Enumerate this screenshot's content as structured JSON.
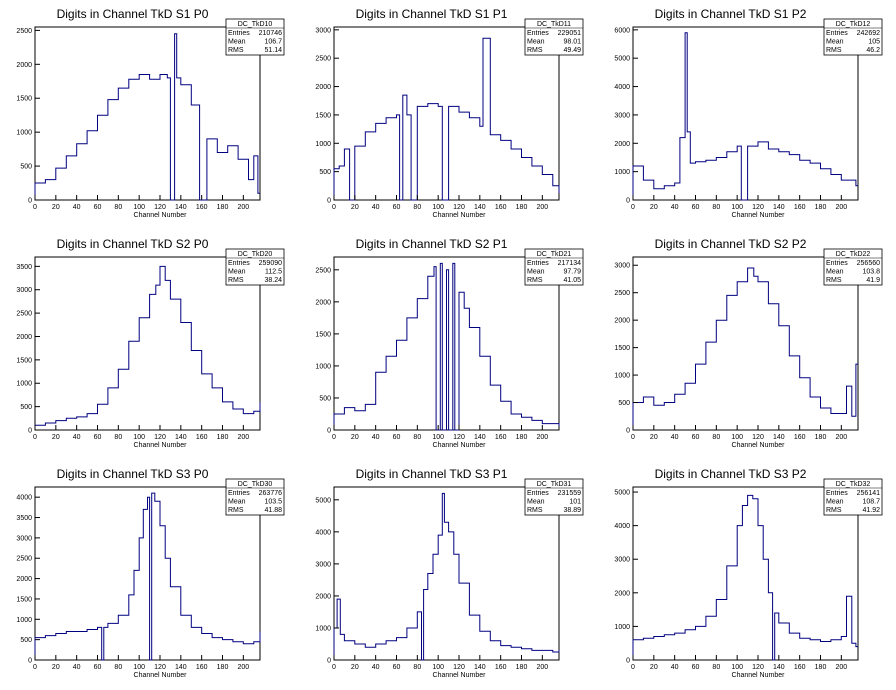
{
  "colors": {
    "histogram": "#000080",
    "axis": "#000000",
    "frame": "#000000"
  },
  "chart_data": [
    {
      "type": "histogram",
      "title": "Digits in Channel TkD S1 P0",
      "xlabel": "Channel Number",
      "xlim": [
        0,
        216
      ],
      "ylim": [
        0,
        2550
      ],
      "xticks": [
        0,
        20,
        40,
        60,
        80,
        100,
        120,
        140,
        160,
        180,
        200
      ],
      "yticks": [
        0,
        500,
        1000,
        1500,
        2000,
        2500
      ],
      "stats": {
        "name": "DC_TkD10",
        "entries": "210746",
        "mean": "106.7",
        "rms": "51.14"
      },
      "x": [
        0,
        10,
        20,
        30,
        40,
        50,
        60,
        70,
        80,
        90,
        100,
        110,
        120,
        127,
        130,
        134,
        136,
        140,
        150,
        158,
        165,
        175,
        185,
        195,
        205,
        210,
        214
      ],
      "y": [
        250,
        300,
        470,
        650,
        830,
        1020,
        1250,
        1480,
        1650,
        1780,
        1850,
        1780,
        1850,
        1800,
        0,
        2450,
        1800,
        1700,
        1400,
        0,
        900,
        700,
        800,
        600,
        300,
        650,
        100
      ]
    },
    {
      "type": "histogram",
      "title": "Digits in Channel TkD S1 P1",
      "xlabel": "Channel Number",
      "xlim": [
        0,
        216
      ],
      "ylim": [
        0,
        3050
      ],
      "xticks": [
        0,
        20,
        40,
        60,
        80,
        100,
        120,
        140,
        160,
        180,
        200
      ],
      "yticks": [
        0,
        500,
        1000,
        1500,
        2000,
        2500,
        3000
      ],
      "stats": {
        "name": "DC_TkD11",
        "entries": "229051",
        "mean": "98.01",
        "rms": "49.49"
      },
      "x": [
        0,
        5,
        10,
        15,
        20,
        30,
        40,
        50,
        60,
        63,
        66,
        70,
        74,
        80,
        90,
        100,
        104,
        110,
        120,
        130,
        140,
        143,
        150,
        160,
        170,
        180,
        190,
        200,
        210,
        216
      ],
      "y": [
        550,
        600,
        900,
        0,
        950,
        1200,
        1350,
        1450,
        1500,
        0,
        1850,
        1500,
        0,
        1650,
        1700,
        1650,
        0,
        1650,
        1550,
        1450,
        1300,
        2850,
        1150,
        1050,
        900,
        750,
        600,
        450,
        250,
        120
      ]
    },
    {
      "type": "histogram",
      "title": "Digits in Channel TkD S1 P2",
      "xlabel": "Channel Number",
      "xlim": [
        0,
        216
      ],
      "ylim": [
        0,
        6100
      ],
      "xticks": [
        0,
        20,
        40,
        60,
        80,
        100,
        120,
        140,
        160,
        180,
        200
      ],
      "yticks": [
        0,
        1000,
        2000,
        3000,
        4000,
        5000,
        6000
      ],
      "stats": {
        "name": "DC_TkD12",
        "entries": "242692",
        "mean": "105",
        "rms": "46.2"
      },
      "x": [
        0,
        10,
        20,
        30,
        40,
        45,
        50,
        52,
        55,
        60,
        70,
        80,
        90,
        100,
        104,
        110,
        120,
        130,
        140,
        150,
        160,
        170,
        180,
        190,
        200,
        210,
        214
      ],
      "y": [
        1200,
        700,
        400,
        500,
        600,
        2200,
        5900,
        2400,
        1300,
        1350,
        1400,
        1500,
        1700,
        1900,
        0,
        1900,
        2050,
        1800,
        1700,
        1600,
        1400,
        1300,
        1100,
        900,
        700,
        700,
        500
      ]
    },
    {
      "type": "histogram",
      "title": "Digits in Channel TkD S2 P0",
      "xlabel": "Channel Number",
      "xlim": [
        0,
        216
      ],
      "ylim": [
        0,
        3700
      ],
      "xticks": [
        0,
        20,
        40,
        60,
        80,
        100,
        120,
        140,
        160,
        180,
        200
      ],
      "yticks": [
        0,
        500,
        1000,
        1500,
        2000,
        2500,
        3000,
        3500
      ],
      "stats": {
        "name": "DC_TkD20",
        "entries": "259090",
        "mean": "112.5",
        "rms": "38.24"
      },
      "x": [
        0,
        10,
        20,
        30,
        40,
        50,
        60,
        70,
        80,
        90,
        100,
        110,
        116,
        120,
        125,
        130,
        140,
        150,
        160,
        170,
        180,
        190,
        200,
        210,
        216
      ],
      "y": [
        100,
        150,
        200,
        250,
        280,
        350,
        550,
        900,
        1300,
        1900,
        2400,
        2900,
        3100,
        3500,
        3200,
        2800,
        2300,
        1700,
        1200,
        900,
        600,
        450,
        350,
        400,
        600
      ]
    },
    {
      "type": "histogram",
      "title": "Digits in Channel TkD S2 P1",
      "xlabel": "Channel Number",
      "xlim": [
        0,
        216
      ],
      "ylim": [
        0,
        2700
      ],
      "xticks": [
        0,
        20,
        40,
        60,
        80,
        100,
        120,
        140,
        160,
        180,
        200
      ],
      "yticks": [
        0,
        500,
        1000,
        1500,
        2000,
        2500
      ],
      "stats": {
        "name": "DC_TkD21",
        "entries": "217134",
        "mean": "97.79",
        "rms": "41.05"
      },
      "x": [
        0,
        10,
        20,
        30,
        40,
        50,
        60,
        70,
        80,
        90,
        96,
        98,
        102,
        104,
        108,
        110,
        114,
        116,
        120,
        125,
        130,
        140,
        150,
        160,
        170,
        180,
        190,
        200,
        210,
        216
      ],
      "y": [
        250,
        350,
        300,
        400,
        900,
        1150,
        1400,
        1750,
        2050,
        2400,
        2550,
        0,
        2600,
        0,
        2500,
        0,
        2600,
        0,
        2150,
        1900,
        1600,
        1150,
        700,
        450,
        250,
        200,
        150,
        100,
        100,
        60
      ]
    },
    {
      "type": "histogram",
      "title": "Digits in Channel TkD S2 P2",
      "xlabel": "Channel Number",
      "xlim": [
        0,
        216
      ],
      "ylim": [
        0,
        3150
      ],
      "xticks": [
        0,
        20,
        40,
        60,
        80,
        100,
        120,
        140,
        160,
        180,
        200
      ],
      "yticks": [
        0,
        500,
        1000,
        1500,
        2000,
        2500,
        3000
      ],
      "stats": {
        "name": "DC_TkD22",
        "entries": "256560",
        "mean": "103.8",
        "rms": "41.9"
      },
      "x": [
        0,
        10,
        20,
        30,
        40,
        50,
        60,
        70,
        80,
        90,
        100,
        110,
        116,
        120,
        130,
        140,
        150,
        160,
        170,
        180,
        190,
        200,
        205,
        210,
        214
      ],
      "y": [
        500,
        600,
        450,
        500,
        650,
        850,
        1200,
        1600,
        2000,
        2450,
        2700,
        2950,
        2800,
        2700,
        2300,
        1900,
        1350,
        950,
        600,
        400,
        300,
        300,
        800,
        250,
        1200
      ]
    },
    {
      "type": "histogram",
      "title": "Digits in Channel TkD S3 P0",
      "xlabel": "Channel Number",
      "xlim": [
        0,
        216
      ],
      "ylim": [
        0,
        4250
      ],
      "xticks": [
        0,
        20,
        40,
        60,
        80,
        100,
        120,
        140,
        160,
        180,
        200
      ],
      "yticks": [
        0,
        500,
        1000,
        1500,
        2000,
        2500,
        3000,
        3500,
        4000
      ],
      "stats": {
        "name": "DC_TkD30",
        "entries": "263776",
        "mean": "103.5",
        "rms": "41.88"
      },
      "x": [
        0,
        10,
        20,
        30,
        40,
        50,
        60,
        64,
        66,
        70,
        80,
        90,
        95,
        100,
        104,
        108,
        110,
        112,
        115,
        120,
        125,
        130,
        140,
        150,
        160,
        170,
        180,
        190,
        200,
        210,
        216
      ],
      "y": [
        550,
        600,
        650,
        700,
        700,
        750,
        800,
        0,
        800,
        900,
        1100,
        1600,
        2200,
        3000,
        3700,
        4000,
        0,
        4100,
        3900,
        3300,
        2500,
        1800,
        1100,
        800,
        650,
        550,
        500,
        450,
        400,
        450,
        700
      ]
    },
    {
      "type": "histogram",
      "title": "Digits in Channel TkD S3 P1",
      "xlabel": "Channel Number",
      "xlim": [
        0,
        216
      ],
      "ylim": [
        0,
        5400
      ],
      "xticks": [
        0,
        20,
        40,
        60,
        80,
        100,
        120,
        140,
        160,
        180,
        200
      ],
      "yticks": [
        0,
        1000,
        2000,
        3000,
        4000,
        5000
      ],
      "stats": {
        "name": "DC_TkD31",
        "entries": "231559",
        "mean": "101",
        "rms": "38.89"
      },
      "x": [
        0,
        3,
        6,
        10,
        20,
        30,
        40,
        50,
        60,
        70,
        80,
        84,
        86,
        90,
        95,
        100,
        104,
        106,
        110,
        115,
        120,
        130,
        140,
        150,
        160,
        170,
        180,
        190,
        200,
        210,
        216
      ],
      "y": [
        1000,
        1900,
        800,
        600,
        500,
        400,
        500,
        600,
        700,
        1000,
        1500,
        0,
        2200,
        2700,
        3300,
        3900,
        5200,
        4300,
        4000,
        3300,
        2400,
        1400,
        900,
        600,
        450,
        400,
        350,
        300,
        300,
        250,
        300
      ]
    },
    {
      "type": "histogram",
      "title": "Digits in Channel TkD S3 P2",
      "xlabel": "Channel Number",
      "xlim": [
        0,
        216
      ],
      "ylim": [
        0,
        5150
      ],
      "xticks": [
        0,
        20,
        40,
        60,
        80,
        100,
        120,
        140,
        160,
        180,
        200
      ],
      "yticks": [
        0,
        1000,
        2000,
        3000,
        4000,
        5000
      ],
      "stats": {
        "name": "DC_TkD32",
        "entries": "256141",
        "mean": "108.7",
        "rms": "41.92"
      },
      "x": [
        0,
        10,
        20,
        30,
        40,
        50,
        60,
        70,
        80,
        90,
        100,
        105,
        110,
        115,
        120,
        125,
        130,
        134,
        136,
        140,
        150,
        160,
        170,
        180,
        190,
        200,
        205,
        210,
        214
      ],
      "y": [
        600,
        650,
        700,
        750,
        800,
        900,
        1000,
        1300,
        1800,
        2800,
        4000,
        4600,
        4900,
        4800,
        4000,
        3000,
        2000,
        0,
        1400,
        1100,
        800,
        650,
        600,
        550,
        600,
        700,
        1900,
        500,
        400
      ]
    }
  ]
}
